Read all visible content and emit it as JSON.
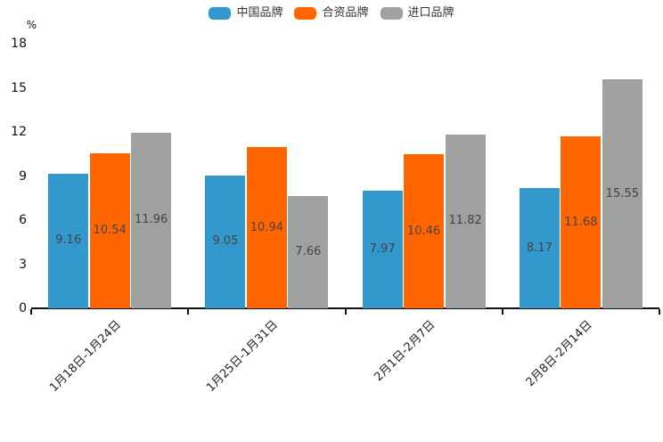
{
  "chart_data": {
    "type": "bar",
    "ylabel": "%",
    "categories": [
      "1月18日-1月24日",
      "1月25日-1月31日",
      "2月1日-2月7日",
      "2月8日-2月14日"
    ],
    "series": [
      {
        "name": "中国品牌",
        "color": "#3398CB",
        "values": [
          9.16,
          9.05,
          7.97,
          8.17
        ]
      },
      {
        "name": "合资品牌",
        "color": "#FF6600",
        "values": [
          10.54,
          10.94,
          10.46,
          11.68
        ]
      },
      {
        "name": "进口品牌",
        "color": "#A0A0A0",
        "values": [
          11.96,
          7.66,
          11.82,
          15.55
        ]
      }
    ],
    "yticks": [
      0,
      3,
      6,
      9,
      12,
      15,
      18
    ],
    "ylim": [
      0,
      18
    ],
    "legend_position": "top",
    "grid": false,
    "value_label_position": "inside-middle",
    "axis_color": "#111111",
    "value_label_color": "#444444"
  }
}
